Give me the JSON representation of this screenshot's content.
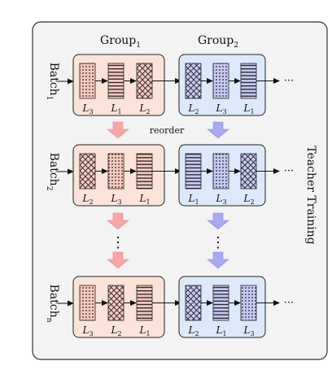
{
  "groups": [
    {
      "label": "Group",
      "sub": "1"
    },
    {
      "label": "Group",
      "sub": "2"
    }
  ],
  "batches": [
    {
      "label": "Batch",
      "sub": "1",
      "groups": [
        [
          {
            "layer": "L",
            "sub": "3",
            "pattern": "dots"
          },
          {
            "layer": "L",
            "sub": "1",
            "pattern": "lines"
          },
          {
            "layer": "L",
            "sub": "2",
            "pattern": "cross"
          }
        ],
        [
          {
            "layer": "L",
            "sub": "2",
            "pattern": "cross"
          },
          {
            "layer": "L",
            "sub": "3",
            "pattern": "dots"
          },
          {
            "layer": "L",
            "sub": "1",
            "pattern": "lines"
          }
        ]
      ]
    },
    {
      "label": "Batch",
      "sub": "2",
      "groups": [
        [
          {
            "layer": "L",
            "sub": "2",
            "pattern": "cross"
          },
          {
            "layer": "L",
            "sub": "3",
            "pattern": "dots"
          },
          {
            "layer": "L",
            "sub": "1",
            "pattern": "lines"
          }
        ],
        [
          {
            "layer": "L",
            "sub": "1",
            "pattern": "lines"
          },
          {
            "layer": "L",
            "sub": "3",
            "pattern": "dots"
          },
          {
            "layer": "L",
            "sub": "2",
            "pattern": "cross"
          }
        ]
      ]
    },
    {
      "label": "Batch",
      "sub": "n",
      "groups": [
        [
          {
            "layer": "L",
            "sub": "3",
            "pattern": "dots"
          },
          {
            "layer": "L",
            "sub": "2",
            "pattern": "cross"
          },
          {
            "layer": "L",
            "sub": "1",
            "pattern": "lines"
          }
        ],
        [
          {
            "layer": "L",
            "sub": "2",
            "pattern": "cross"
          },
          {
            "layer": "L",
            "sub": "1",
            "pattern": "lines"
          },
          {
            "layer": "L",
            "sub": "3",
            "pattern": "dots"
          }
        ]
      ]
    }
  ],
  "reorder_label": "reorder",
  "side_label": "Teacher Training",
  "continuation": "···",
  "vertical_continuation": "⋮",
  "colors": {
    "group1_fill": "#fbe3d9",
    "group2_fill": "#dde9fb",
    "group1_arrow": "#f5a7a7",
    "group2_arrow": "#a9a9f0",
    "group1_bar": "#f6c9bd",
    "group2_bar": "#c6c9f2",
    "frame_fill": "#f3f3f3"
  }
}
